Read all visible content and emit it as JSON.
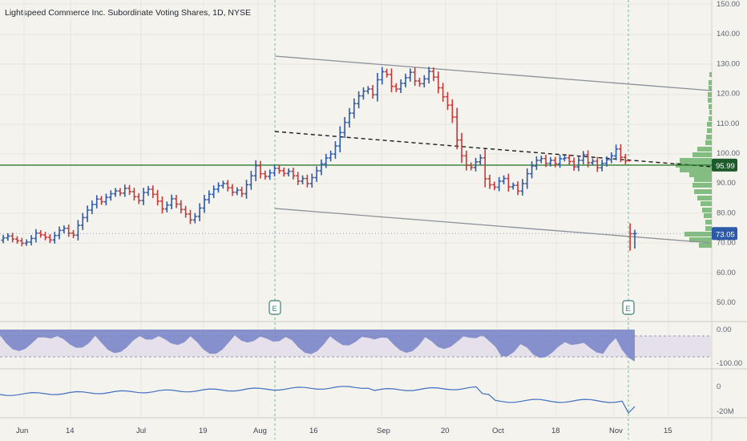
{
  "header": {
    "title": "Lightspeed Commerce Inc. Subordinate Voting Shares, 1D, NYSE"
  },
  "chart_data": {
    "type": "ohlc",
    "title": "Lightspeed Commerce Inc. Subordinate Voting Shares, 1D, NYSE",
    "price_axis": {
      "ticks": [
        "150.00",
        "140.00",
        "130.00",
        "120.00",
        "110.00",
        "100.00",
        "90.00",
        "80.00",
        "70.00",
        "60.00",
        "50.00"
      ],
      "ylim": [
        45,
        152
      ]
    },
    "x_axis": {
      "ticks": [
        "Jun",
        "14",
        "Jul",
        "19",
        "Aug",
        "16",
        "Sep",
        "20",
        "Oct",
        "18",
        "Nov",
        "15"
      ]
    },
    "price_labels": {
      "horizontal_line": "95.99",
      "last_price": "73.05"
    },
    "colors": {
      "up": "#2e5aa8",
      "down": "#c23a3a",
      "hline": "#2e7d32",
      "channel": "#8a8f98",
      "volume_profile": "#5cab5c",
      "oscillator_fill": "#7b87c9",
      "volume_line": "#3f6fc0"
    },
    "earnings_markers": [
      {
        "label": "E",
        "date": "Aug 5"
      },
      {
        "label": "E",
        "date": "Nov 4"
      }
    ],
    "closes": [
      71.6,
      72.2,
      71.2,
      70.6,
      69.8,
      70.2,
      71.4,
      73.2,
      72.6,
      71.8,
      70.9,
      72.4,
      74.1,
      74.8,
      73.2,
      72.5,
      75.8,
      78.4,
      80.9,
      82.8,
      84.6,
      83.7,
      85.2,
      86.4,
      87.3,
      86.6,
      88.2,
      87.1,
      85.4,
      84.1,
      86.8,
      87.9,
      86.2,
      83.9,
      81.3,
      82.6,
      84.7,
      82.9,
      81.1,
      79.6,
      77.6,
      78.8,
      81.6,
      84.4,
      86.2,
      87.9,
      89.1,
      89.8,
      88.4,
      86.9,
      87.6,
      86.4,
      89.4,
      92.4,
      95.8,
      93.1,
      92.2,
      93.4,
      94.9,
      94.1,
      93.2,
      93.9,
      92.4,
      90.6,
      91.5,
      89.8,
      91.8,
      94.1,
      96.4,
      98.4,
      99.7,
      102.4,
      106.9,
      110.3,
      113.4,
      116.6,
      119.2,
      120.8,
      121.5,
      119.6,
      124.6,
      127.3,
      126.4,
      122.4,
      121.5,
      123.4,
      125.3,
      127.1,
      124.2,
      123.3,
      124.9,
      127.4,
      125.5,
      121.9,
      118.9,
      116.1,
      112.1,
      104.4,
      99.1,
      95.9,
      95.2,
      97.1,
      98.4,
      91.4,
      89.4,
      88.6,
      90.6,
      91.5,
      88.7,
      89.2,
      87.3,
      89.8,
      93.1,
      95.7,
      97.6,
      98.2,
      96.6,
      97.6,
      96.4,
      98.1,
      98.4,
      97.2,
      95.4,
      97.6,
      99.4,
      96.8,
      97.3,
      95.1,
      96.6,
      97.8,
      99.1,
      101.4,
      98.6,
      97.4,
      73.0,
      73.05
    ],
    "oscillator": {
      "ticks": [
        "0.00",
        "-100.00"
      ]
    },
    "volume": {
      "ticks": [
        "0",
        "-20M"
      ]
    }
  }
}
